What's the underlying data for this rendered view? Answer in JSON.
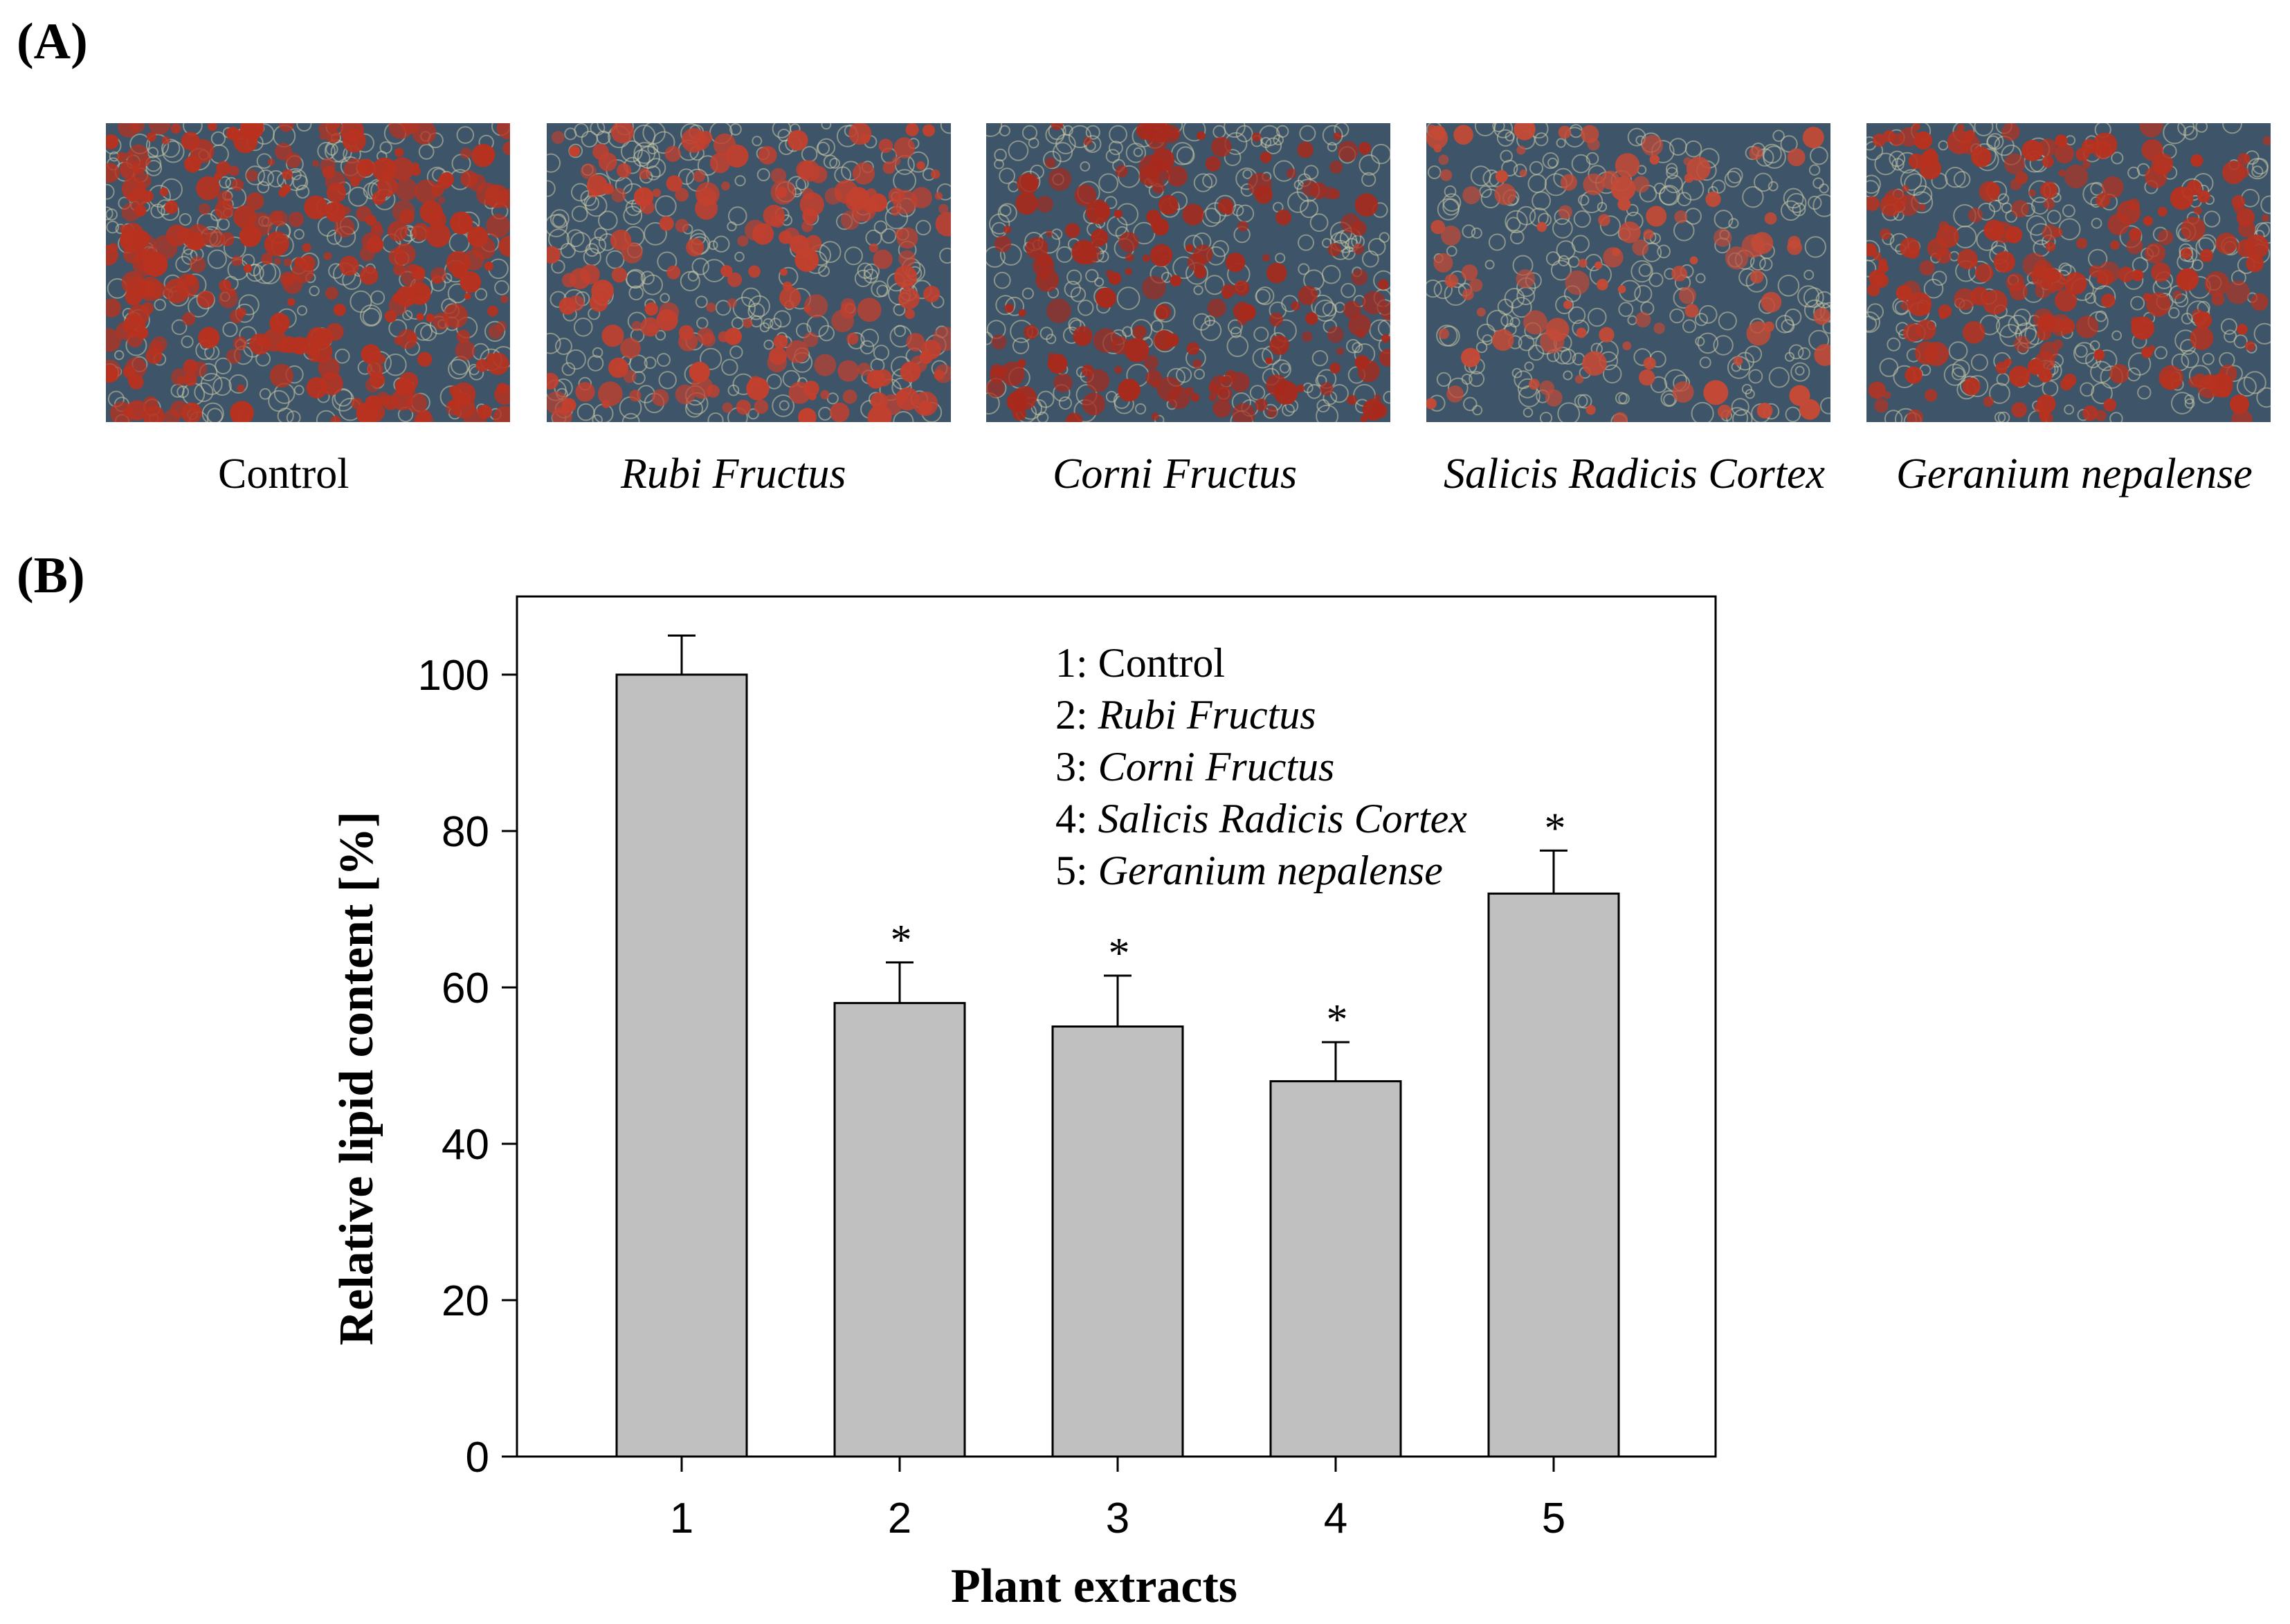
{
  "panel_a": {
    "label": "(A)",
    "images": [
      {
        "caption": "Control",
        "italic": false,
        "tone": "#b8321f",
        "density": 0.72
      },
      {
        "caption": "Rubi Fructus",
        "italic": true,
        "tone": "#c2402e",
        "density": 0.45
      },
      {
        "caption": "Corni Fructus",
        "italic": true,
        "tone": "#a82a1c",
        "density": 0.42
      },
      {
        "caption": "Salicis Radicis Cortex",
        "italic": true,
        "tone": "#c44a36",
        "density": 0.25
      },
      {
        "caption": "Geranium nepalense",
        "italic": true,
        "tone": "#b8321f",
        "density": 0.5
      }
    ]
  },
  "panel_b": {
    "label": "(B)"
  },
  "chart_data": {
    "type": "bar",
    "categories": [
      "1",
      "2",
      "3",
      "4",
      "5"
    ],
    "values": [
      100,
      58,
      55,
      48,
      72
    ],
    "errors": [
      5,
      5.2,
      6.5,
      5,
      5.5
    ],
    "significance": [
      "",
      "*",
      "*",
      "*",
      "*"
    ],
    "xlabel": "Plant extracts",
    "ylabel": "Relative lipid content [%]",
    "ylim": [
      0,
      110
    ],
    "yticks": [
      0,
      20,
      40,
      60,
      80,
      100
    ],
    "bar_color": "#c0c0c0",
    "grid": false,
    "legend_placement": "top-right",
    "legend": [
      {
        "prefix": "1: ",
        "name": "Control",
        "italic": false
      },
      {
        "prefix": "2: ",
        "name": "Rubi Fructus",
        "italic": true
      },
      {
        "prefix": "3: ",
        "name": "Corni Fructus",
        "italic": true
      },
      {
        "prefix": "4: ",
        "name": "Salicis Radicis Cortex",
        "italic": true
      },
      {
        "prefix": "5: ",
        "name": "Geranium nepalense",
        "italic": true
      }
    ]
  }
}
